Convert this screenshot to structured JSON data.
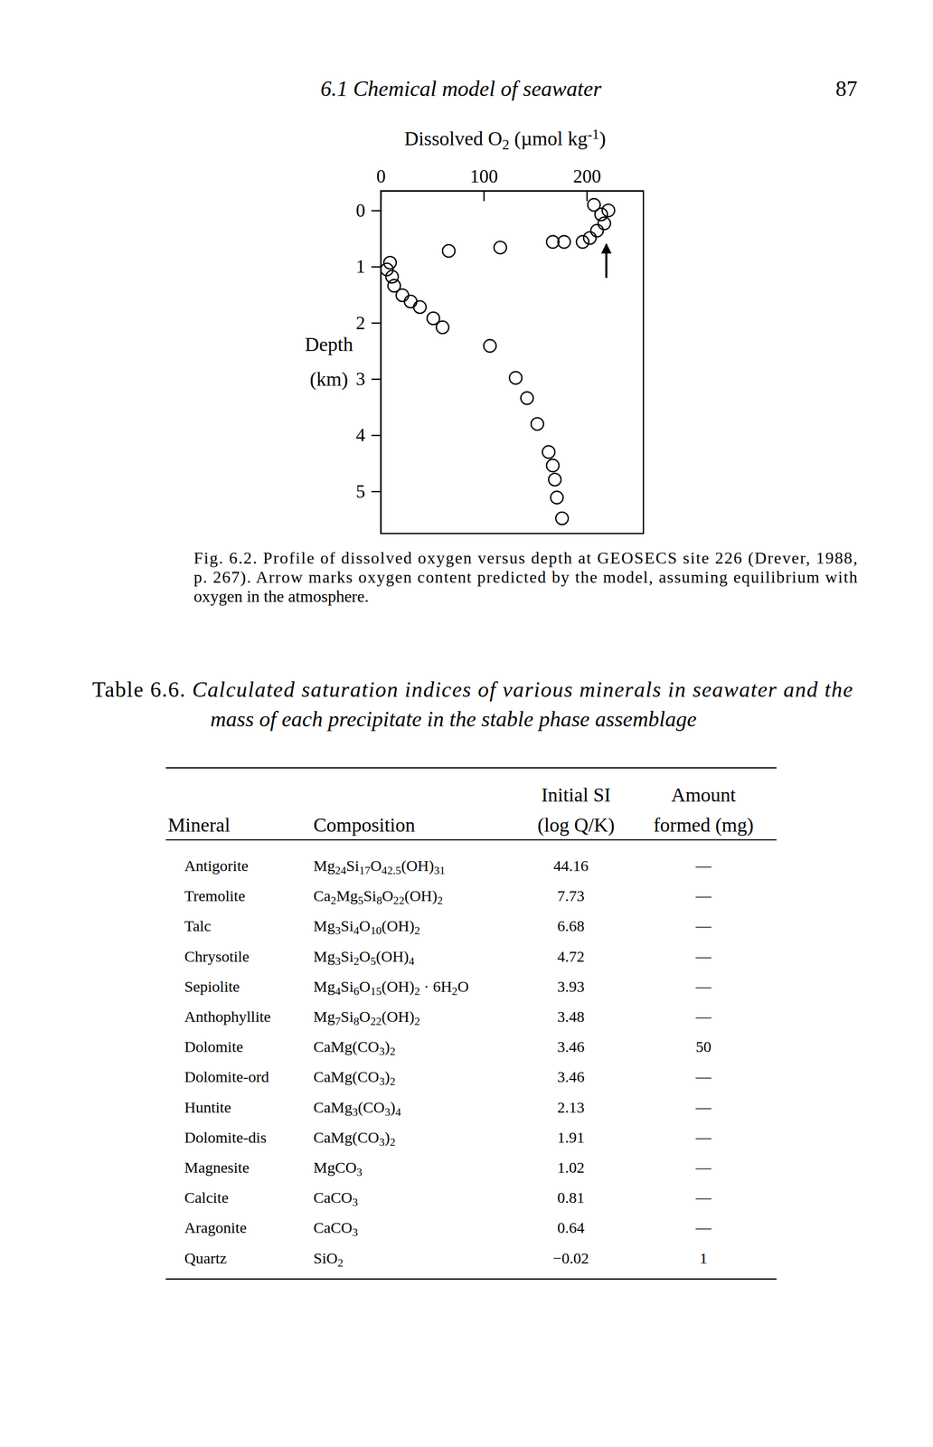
{
  "page_header": {
    "title": "6.1 Chemical model of seawater",
    "page_number": "87"
  },
  "chart_data": {
    "type": "scatter",
    "xlabel": "Dissolved O2 (µmol kg-1)",
    "ylabel": "Depth (km)",
    "xlim": [
      0,
      255
    ],
    "xticks": [
      0,
      100,
      200
    ],
    "ylim": [
      -0.35,
      5.75
    ],
    "yticks": [
      0,
      1,
      2,
      3,
      4,
      5
    ],
    "series": [
      {
        "marker": "circle",
        "color": "#000000",
        "x": [
          207,
          214,
          221,
          217,
          210,
          203,
          196,
          178,
          167,
          116,
          66,
          9,
          6,
          11,
          13,
          21,
          29,
          38,
          51,
          60,
          106,
          131,
          142,
          152,
          163,
          167,
          169,
          171,
          176
        ],
        "values": [
          -0.1,
          0.07,
          0.0,
          0.23,
          0.36,
          0.49,
          0.56,
          0.56,
          0.56,
          0.66,
          0.72,
          0.93,
          1.05,
          1.18,
          1.34,
          1.51,
          1.62,
          1.72,
          1.92,
          2.08,
          2.41,
          2.98,
          3.34,
          3.8,
          4.3,
          4.54,
          4.79,
          5.11,
          5.48
        ]
      }
    ],
    "arrow": {
      "x": 219,
      "depth": [
        1.2,
        0.6
      ]
    }
  },
  "caption_lines": [
    "Fig. 6.2. Profile of dissolved oxygen versus depth at GEOSECS site 226 (Drever, 1988,",
    "p. 267). Arrow marks oxygen content predicted by the model, assuming equilibrium with",
    "oxygen in the atmosphere."
  ],
  "table": {
    "label": "Table 6.6.",
    "title_lines": [
      "Calculated saturation indices of various minerals in seawater and the",
      "mass of each precipitate in the stable phase assemblage"
    ],
    "header": [
      [
        "Mineral"
      ],
      [
        "Composition"
      ],
      [
        "Initial SI",
        "(log Q/K)"
      ],
      [
        "Amount",
        "formed (mg)"
      ]
    ],
    "rows": [
      [
        "Antigorite",
        "Mg24Si17O42.5(OH)31",
        "44.16",
        "—"
      ],
      [
        "Tremolite",
        "Ca2Mg5Si8O22(OH)2",
        "7.73",
        "—"
      ],
      [
        "Talc",
        "Mg3Si4O10(OH)2",
        "6.68",
        "—"
      ],
      [
        "Chrysotile",
        "Mg3Si2O5(OH)4",
        "4.72",
        "—"
      ],
      [
        "Sepiolite",
        "Mg4Si6O15(OH)2 · 6H2O",
        "3.93",
        "—"
      ],
      [
        "Anthophyllite",
        "Mg7Si8O22(OH)2",
        "3.48",
        "—"
      ],
      [
        "Dolomite",
        "CaMg(CO3)2",
        "3.46",
        "50"
      ],
      [
        "Dolomite-ord",
        "CaMg(CO3)2",
        "3.46",
        "—"
      ],
      [
        "Huntite",
        "CaMg3(CO3)4",
        "2.13",
        "—"
      ],
      [
        "Dolomite-dis",
        "CaMg(CO3)2",
        "1.91",
        "—"
      ],
      [
        "Magnesite",
        "MgCO3",
        "1.02",
        "—"
      ],
      [
        "Calcite",
        "CaCO3",
        "0.81",
        "—"
      ],
      [
        "Aragonite",
        "CaCO3",
        "0.64",
        "—"
      ],
      [
        "Quartz",
        "SiO2",
        "−0.02",
        "1"
      ]
    ]
  }
}
